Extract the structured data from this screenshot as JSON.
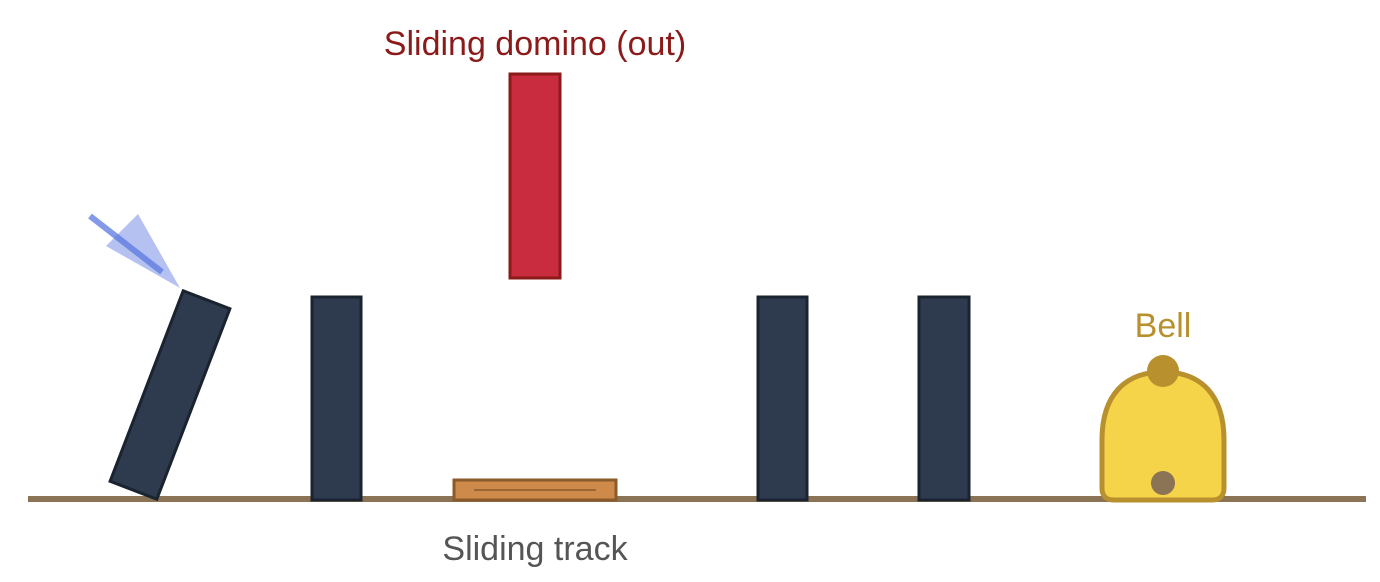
{
  "labels": {
    "sliding_domino": "Sliding domino (out)",
    "sliding_track": "Sliding track",
    "bell": "Bell"
  },
  "colors": {
    "ground": "#8b7355",
    "domino_fill": "#2e3b4e",
    "domino_stroke": "#1a2330",
    "sliding_domino_fill": "#c92c3e",
    "sliding_domino_stroke": "#8b1a1a",
    "sliding_domino_label": "#8b1a1a",
    "track_fill": "#cd8a4a",
    "track_stroke": "#8b5a2b",
    "bell_fill": "#f6d44a",
    "bell_stroke": "#b8902e",
    "bell_label": "#b8902e",
    "clapper": "#8b7355",
    "push_arrow": "#5b78e0",
    "track_label": "#555555"
  },
  "icons": {
    "push_arrow": "push-arrow-icon",
    "bell": "bell-icon"
  }
}
